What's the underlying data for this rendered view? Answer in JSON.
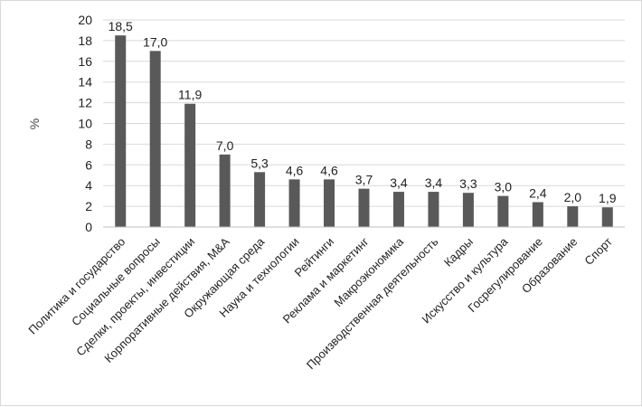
{
  "chart_data": {
    "type": "bar",
    "title": "",
    "xlabel": "",
    "ylabel": "%",
    "ylim": [
      0,
      20
    ],
    "yticks": [
      0,
      2,
      4,
      6,
      8,
      10,
      12,
      14,
      16,
      18,
      20
    ],
    "grid": true,
    "legend": "none",
    "bar_color": "#595959",
    "categories": [
      "Политика и государство",
      "Социальные вопросы",
      "Сделки, проекты, инвестиции",
      "Корпоративные действия, M&A",
      "Окружающая среда",
      "Наука и технологии",
      "Рейтинги",
      "Реклама и маркетинг",
      "Макроэкономика",
      "Производственная деятельность",
      "Кадры",
      "Искусство и культура",
      "Госрегулирование",
      "Образование",
      "Спорт"
    ],
    "values": [
      18.5,
      17.0,
      11.9,
      7.0,
      5.3,
      4.6,
      4.6,
      3.7,
      3.4,
      3.4,
      3.3,
      3.0,
      2.4,
      2.0,
      1.9
    ],
    "data_labels": [
      "18,5",
      "17,0",
      "11,9",
      "7,0",
      "5,3",
      "4,6",
      "4,6",
      "3,7",
      "3,4",
      "3,4",
      "3,3",
      "3,0",
      "2,4",
      "2,0",
      "1,9"
    ]
  }
}
